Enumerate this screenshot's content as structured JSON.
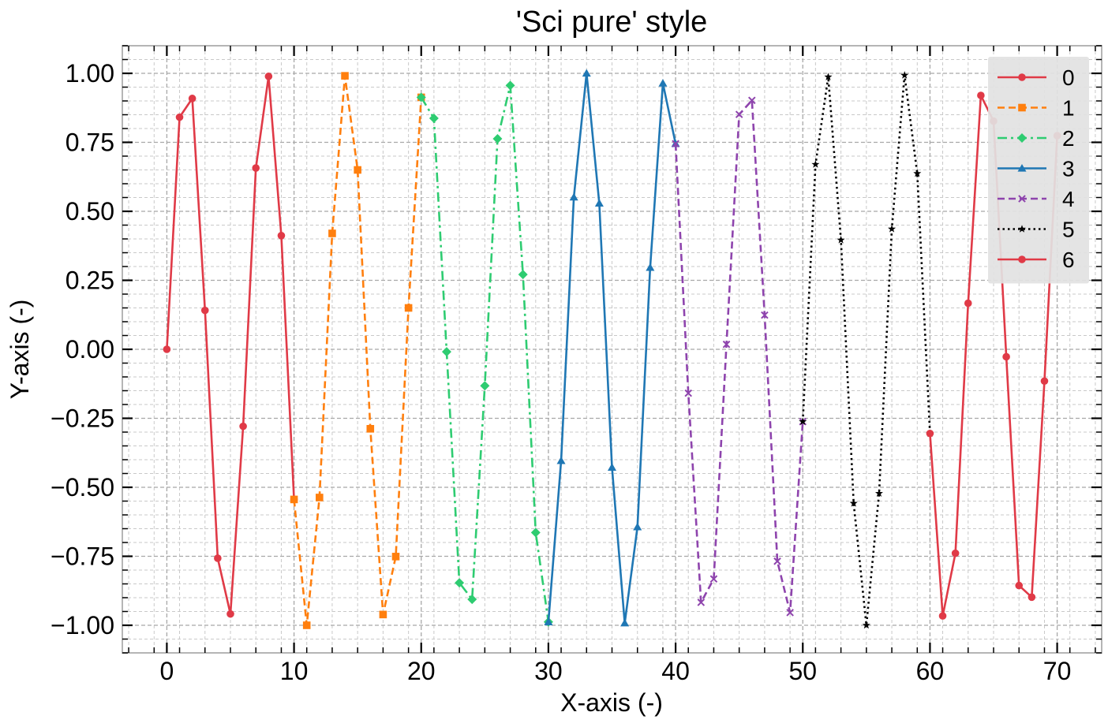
{
  "chart_data": {
    "type": "line",
    "title": "'Sci pure' style",
    "xlabel": "X-axis (-)",
    "ylabel": "Y-axis (-)",
    "xlim": [
      -3.5,
      73.5
    ],
    "ylim": [
      -1.1,
      1.1
    ],
    "xticks": [
      0,
      10,
      20,
      30,
      40,
      50,
      60,
      70
    ],
    "xtick_labels": [
      "0",
      "10",
      "20",
      "30",
      "40",
      "50",
      "60",
      "70"
    ],
    "yticks": [
      1.0,
      0.75,
      0.5,
      0.25,
      0.0,
      -0.25,
      -0.5,
      -0.75,
      -1.0
    ],
    "ytick_labels": [
      "1.00",
      "0.75",
      "0.50",
      "0.25",
      "0.00",
      "−0.25",
      "−0.50",
      "−0.75",
      "−1.00"
    ],
    "grid": true,
    "legend_position": "top-right",
    "series": [
      {
        "name": "0",
        "color": "#e03a47",
        "linestyle": "solid",
        "marker": "circle",
        "x": [
          0,
          1,
          2,
          3,
          4,
          5,
          6,
          7,
          8,
          9,
          10
        ],
        "y": [
          0.0,
          0.841,
          0.909,
          0.141,
          -0.757,
          -0.959,
          -0.279,
          0.657,
          0.989,
          0.412,
          -0.544
        ]
      },
      {
        "name": "1",
        "color": "#ff7f0e",
        "linestyle": "dashed",
        "marker": "square",
        "x": [
          10,
          11,
          12,
          13,
          14,
          15,
          16,
          17,
          18,
          19,
          20
        ],
        "y": [
          -0.544,
          -1.0,
          -0.537,
          0.42,
          0.991,
          0.65,
          -0.288,
          -0.961,
          -0.751,
          0.15,
          0.913
        ]
      },
      {
        "name": "2",
        "color": "#2ecc71",
        "linestyle": "dashdot",
        "marker": "diamond",
        "x": [
          20,
          21,
          22,
          23,
          24,
          25,
          26,
          27,
          28,
          29,
          30
        ],
        "y": [
          0.913,
          0.837,
          -0.009,
          -0.846,
          -0.906,
          -0.132,
          0.763,
          0.956,
          0.271,
          -0.664,
          -0.988
        ]
      },
      {
        "name": "3",
        "color": "#1f77b4",
        "linestyle": "solid",
        "marker": "triangle",
        "x": [
          30,
          31,
          32,
          33,
          34,
          35,
          36,
          37,
          38,
          39,
          40
        ],
        "y": [
          -0.988,
          -0.404,
          0.551,
          1.0,
          0.529,
          -0.428,
          -0.992,
          -0.644,
          0.296,
          0.964,
          0.745
        ]
      },
      {
        "name": "4",
        "color": "#8e44ad",
        "linestyle": "dashed",
        "marker": "x",
        "x": [
          40,
          41,
          42,
          43,
          44,
          45,
          46,
          47,
          48,
          49,
          50
        ],
        "y": [
          0.745,
          -0.159,
          -0.917,
          -0.832,
          0.018,
          0.851,
          0.902,
          0.124,
          -0.768,
          -0.954,
          -0.262
        ]
      },
      {
        "name": "5",
        "color": "#000000",
        "linestyle": "dotted",
        "marker": "star",
        "x": [
          50,
          51,
          52,
          53,
          54,
          55,
          56,
          57,
          58,
          59,
          60
        ],
        "y": [
          -0.262,
          0.67,
          0.987,
          0.396,
          -0.558,
          -1.0,
          -0.522,
          0.436,
          0.993,
          0.637,
          -0.305
        ]
      },
      {
        "name": "6",
        "color": "#e03a47",
        "linestyle": "solid",
        "marker": "circle",
        "x": [
          60,
          61,
          62,
          63,
          64,
          65,
          66,
          67,
          68,
          69,
          70
        ],
        "y": [
          -0.305,
          -0.966,
          -0.739,
          0.167,
          0.92,
          0.827,
          -0.027,
          -0.856,
          -0.898,
          -0.115,
          0.774
        ]
      }
    ]
  }
}
